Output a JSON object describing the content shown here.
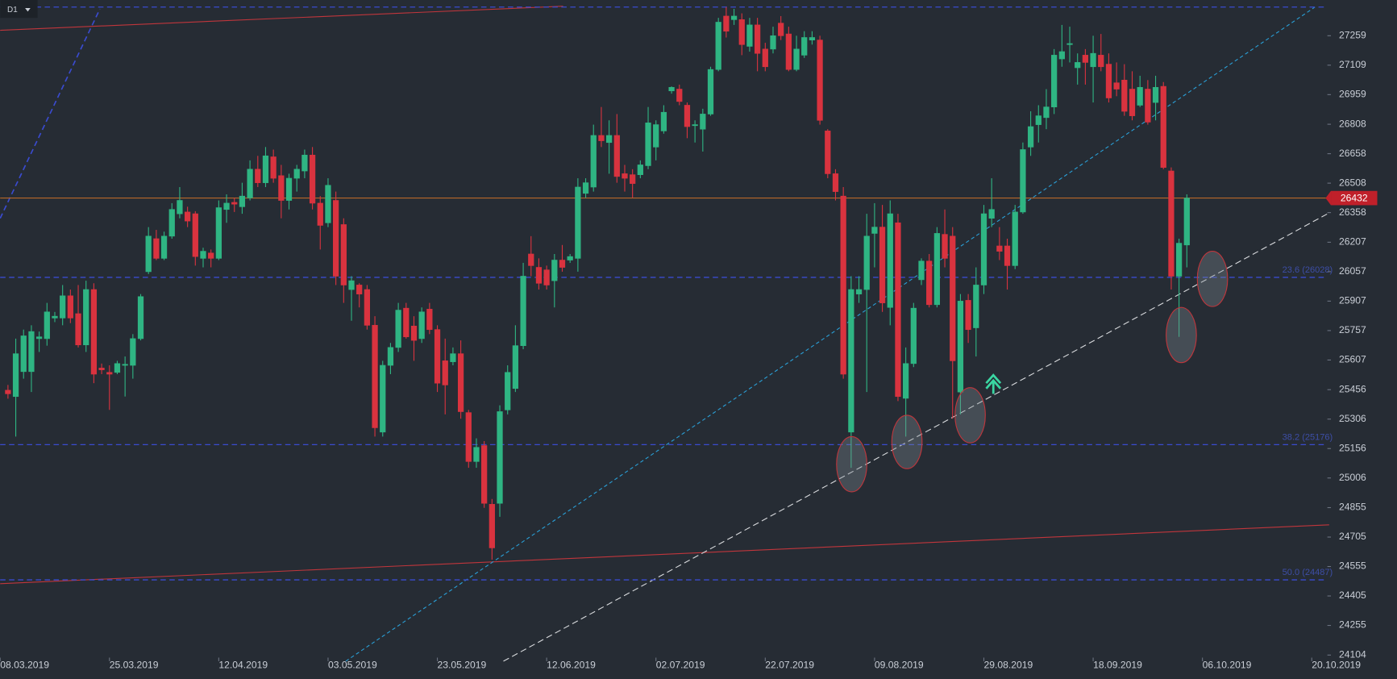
{
  "chart_data": {
    "type": "candlestick",
    "timeframe": "D1",
    "up_color": "#2fb583",
    "down_color": "#d9333f",
    "last_price_color": "#b8672a",
    "level_color": "#3a4bcf",
    "xlim": [
      0,
      170
    ],
    "ylim": [
      23982,
      27441
    ],
    "xticks": [
      {
        "value": 0,
        "label": "08.03.2019"
      },
      {
        "value": 14,
        "label": "25.03.2019"
      },
      {
        "value": 28,
        "label": "12.04.2019"
      },
      {
        "value": 42,
        "label": "03.05.2019"
      },
      {
        "value": 56,
        "label": "23.05.2019"
      },
      {
        "value": 70,
        "label": "12.06.2019"
      },
      {
        "value": 84,
        "label": "02.07.2019"
      },
      {
        "value": 98,
        "label": "22.07.2019"
      },
      {
        "value": 112,
        "label": "09.08.2019"
      },
      {
        "value": 126,
        "label": "29.08.2019"
      },
      {
        "value": 140,
        "label": "18.09.2019"
      },
      {
        "value": 154,
        "label": "06.10.2019"
      },
      {
        "value": 168,
        "label": "20.10.2019"
      }
    ],
    "yticks": [
      27259,
      27109,
      26959,
      26808,
      26658,
      26508,
      26358,
      26207,
      26057,
      25907,
      25757,
      25607,
      25456,
      25306,
      25156,
      25006,
      24855,
      24705,
      24555,
      24405,
      24255,
      24104
    ],
    "levels": [
      {
        "value": 27405
      },
      {
        "value": 26028,
        "label": "23.6 (26028)"
      },
      {
        "value": 25176,
        "label": "38.2 (25176)"
      },
      {
        "value": 24487,
        "label": "50.0 (24487)"
      }
    ],
    "open": [
      25453,
      25421,
      25548,
      25548,
      25716,
      25716,
      25821,
      25821,
      25934,
      25843,
      25684,
      25966,
      25566,
      25544,
      25544,
      25580,
      25580,
      25716,
      26057,
      26225,
      26125,
      26238,
      26352,
      26361,
      26352,
      26125,
      26152,
      26125,
      26374,
      26410,
      26388,
      26433,
      26579,
      26510,
      26642,
      26546,
      26420,
      26533,
      26570,
      26651,
      26406,
      26306,
      26420,
      26297,
      25966,
      25989,
      25966,
      25784,
      25240,
      25580,
      25671,
      25871,
      25780,
      25716,
      25866,
      25762,
      25603,
      25598,
      25639,
      25339,
      25090,
      25171,
      24872,
      24877,
      25353,
      25462,
      25680,
      26147,
      26079,
      26066,
      26011,
      26116,
      26116,
      26125,
      26456,
      26488,
      26751,
      26715,
      26751,
      26556,
      26551,
      26551,
      26597,
      26692,
      26774,
      26978,
      26987,
      26905,
      26801,
      26783,
      26860,
      27087,
      27359,
      27341,
      27341,
      27205,
      27314,
      27191,
      27191,
      27323,
      27268,
      27087,
      27160,
      27237,
      27237,
      26774,
      26556,
      26442,
      25240,
      25943,
      25966,
      26252,
      26284,
      25875,
      26306,
      25412,
      25589,
      26016,
      26111,
      25889,
      26247,
      26238,
      25444,
      25911,
      25771,
      25989,
      26329,
      26188,
      26188,
      26088,
      26361,
      26692,
      26806,
      26842,
      26896,
      27141,
      27214,
      27096,
      27160,
      27101,
      27160,
      27114,
      27019,
      27033,
      26987,
      26905,
      26987,
      26919,
      27001,
      26570,
      26034,
      26193
    ],
    "high": [
      25480,
      25716,
      25762,
      25784,
      25752,
      25898,
      25852,
      25989,
      25966,
      25989,
      26011,
      25998,
      25589,
      25580,
      25603,
      25625,
      25739,
      25943,
      26284,
      26270,
      26261,
      26406,
      26488,
      26388,
      26365,
      26179,
      26170,
      26420,
      26451,
      26433,
      26510,
      26624,
      26647,
      26692,
      26679,
      26601,
      26556,
      26601,
      26679,
      26692,
      26442,
      26533,
      26465,
      26329,
      26034,
      25998,
      25989,
      25830,
      25603,
      25694,
      25898,
      25898,
      25830,
      25875,
      25898,
      25784,
      25716,
      25671,
      25707,
      25353,
      25208,
      25194,
      24899,
      25376,
      25580,
      25784,
      26102,
      26238,
      26125,
      26088,
      26147,
      26193,
      26147,
      26533,
      26533,
      26806,
      26896,
      26828,
      26860,
      26601,
      26579,
      26624,
      26896,
      26828,
      26905,
      27001,
      27010,
      26919,
      26828,
      26887,
      27101,
      27350,
      27405,
      27396,
      27373,
      27350,
      27350,
      27223,
      27305,
      27359,
      27305,
      27259,
      27282,
      27282,
      27259,
      26783,
      26579,
      26488,
      26034,
      26034,
      26352,
      26406,
      26397,
      26420,
      26352,
      25671,
      25898,
      26125,
      26147,
      26284,
      26374,
      26284,
      25943,
      25943,
      26079,
      26397,
      26533,
      26284,
      26225,
      26397,
      26715,
      26874,
      26905,
      26987,
      27191,
      27314,
      27305,
      27169,
      27191,
      27259,
      27268,
      27169,
      27123,
      27114,
      27078,
      27055,
      27033,
      27055,
      27023,
      26588,
      26225,
      26451
    ],
    "low": [
      25410,
      25217,
      25512,
      25444,
      25648,
      25680,
      25800,
      25784,
      25795,
      25671,
      25648,
      25489,
      25535,
      25353,
      25535,
      25421,
      25512,
      25707,
      26045,
      26116,
      26116,
      26225,
      26329,
      26284,
      26088,
      26079,
      26079,
      26116,
      26306,
      26361,
      26352,
      26420,
      26488,
      26488,
      26510,
      26329,
      26374,
      26465,
      26533,
      26374,
      26170,
      26284,
      25989,
      25898,
      25807,
      25875,
      25762,
      25217,
      25217,
      25535,
      25648,
      25716,
      25603,
      25694,
      25739,
      25444,
      25330,
      25580,
      25308,
      25058,
      25058,
      24854,
      24590,
      24808,
      25330,
      25444,
      25662,
      26034,
      25966,
      25966,
      25875,
      26057,
      26102,
      26057,
      26433,
      26465,
      26692,
      26556,
      26510,
      26465,
      26433,
      26533,
      26579,
      26624,
      26760,
      26964,
      26905,
      26737,
      26715,
      26669,
      26851,
      27078,
      27250,
      27314,
      27160,
      27178,
      27078,
      27078,
      27169,
      27237,
      27078,
      27078,
      27146,
      27214,
      26806,
      26533,
      26420,
      25512,
      25058,
      25898,
      25444,
      26079,
      25852,
      25784,
      25398,
      25217,
      25571,
      25989,
      25875,
      25875,
      26079,
      25308,
      25330,
      25694,
      25625,
      25943,
      26284,
      26116,
      25966,
      26070,
      26352,
      26647,
      26715,
      26783,
      26860,
      27101,
      27123,
      27010,
      27010,
      26919,
      27078,
      26919,
      26951,
      26851,
      26828,
      26896,
      26806,
      26828,
      26579,
      25966,
      25725,
      26079
    ],
    "close": [
      25435,
      25639,
      25730,
      25752,
      25725,
      25852,
      25830,
      25934,
      25821,
      25684,
      25966,
      25535,
      25557,
      25535,
      25589,
      25585,
      25716,
      25930,
      26238,
      26125,
      26238,
      26374,
      26420,
      26315,
      26134,
      26161,
      26125,
      26383,
      26406,
      26401,
      26442,
      26579,
      26510,
      26647,
      26533,
      26420,
      26533,
      26579,
      26651,
      26406,
      26293,
      26497,
      26034,
      25989,
      26011,
      25943,
      25784,
      25262,
      25580,
      25671,
      25861,
      25725,
      25707,
      25852,
      25762,
      25489,
      25480,
      25639,
      25344,
      25090,
      25162,
      24877,
      24650,
      25344,
      25544,
      25680,
      26034,
      26088,
      25998,
      25989,
      26116,
      26079,
      26134,
      26488,
      26510,
      26751,
      26724,
      26751,
      26542,
      26533,
      26506,
      26601,
      26815,
      26806,
      26869,
      26996,
      26924,
      26796,
      26806,
      26860,
      27087,
      27328,
      27282,
      27359,
      27214,
      27314,
      27169,
      27101,
      27259,
      27259,
      27087,
      27191,
      27250,
      27250,
      26828,
      26556,
      26465,
      25535,
      25966,
      25966,
      26238,
      26284,
      25898,
      26352,
      25421,
      25589,
      25871,
      26111,
      25889,
      26252,
      26125,
      25603,
      25907,
      25762,
      25989,
      26352,
      26374,
      26161,
      26088,
      26361,
      26679,
      26796,
      26851,
      26896,
      27160,
      27178,
      27219,
      27123,
      27123,
      27169,
      27101,
      26942,
      26987,
      26874,
      26851,
      26996,
      26819,
      26996,
      26588,
      26034,
      26202,
      26432
    ]
  }
}
